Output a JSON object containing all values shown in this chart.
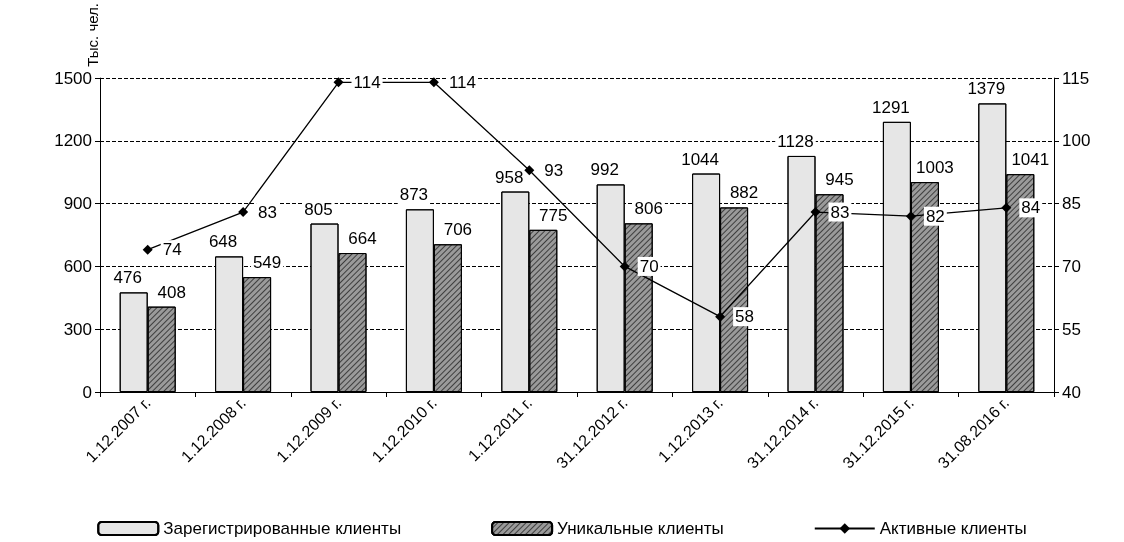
{
  "chart_data": {
    "type": "bar",
    "ylabel": "Тыс. чел.",
    "categories": [
      "1.12.2007 г.",
      "1.12.2008 г.",
      "1.12.2009 г.",
      "1.12.2010 г.",
      "1.12.2011 г.",
      "31.12.2012 г.",
      "1.12.2013 г.",
      "31.12.2014 г.",
      "31.12.2015 г.",
      "31.08.2016 г."
    ],
    "series": [
      {
        "name": "Зарегистрированные клиенты",
        "color": "#e6e6e6",
        "values": [
          476,
          648,
          805,
          873,
          958,
          992,
          1044,
          1128,
          1291,
          1379
        ]
      },
      {
        "name": "Уникальные клиенты",
        "color": "#9a9a9a",
        "values": [
          408,
          549,
          664,
          706,
          775,
          806,
          882,
          945,
          1003,
          1041
        ]
      },
      {
        "name": "Активные клиенты",
        "type": "line",
        "axis": "y2",
        "color": "#000000",
        "values": [
          74,
          83,
          114,
          114,
          93,
          70,
          58,
          83,
          82,
          84
        ]
      }
    ],
    "ylim": [
      0,
      1500
    ],
    "yticks": [
      0,
      300,
      600,
      900,
      1200,
      1500
    ],
    "y2lim": [
      40,
      115
    ],
    "y2ticks": [
      40,
      55,
      70,
      85,
      100,
      115
    ],
    "grid": "y",
    "legend": "bottom",
    "marker": "diamond",
    "line_style": "solid",
    "data_labels": true
  }
}
